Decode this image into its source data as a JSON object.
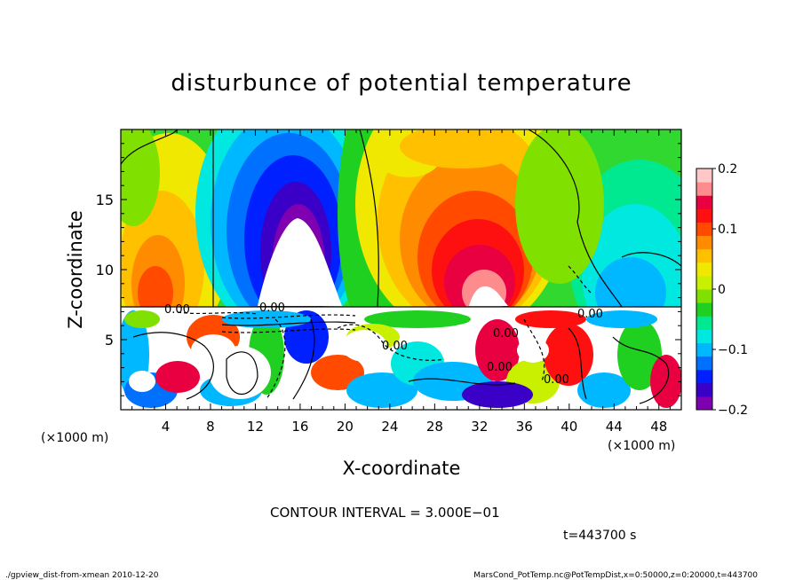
{
  "chart_data": {
    "type": "heatmap",
    "title": "disturbunce of potential temperature",
    "xlabel": "X-coordinate",
    "ylabel": "Z-coordinate",
    "x_unit_left": "(×1000 m)",
    "x_unit_right": "(×1000 m)",
    "xlim": [
      0,
      50
    ],
    "ylim": [
      0,
      20
    ],
    "x_ticks": [
      4,
      8,
      12,
      16,
      20,
      24,
      28,
      32,
      36,
      40,
      44,
      48
    ],
    "y_ticks": [
      5,
      10,
      15
    ],
    "colorbar": {
      "range": [
        -0.2,
        0.2
      ],
      "ticks": [
        0.2,
        0.1,
        0,
        -0.1,
        -0.2
      ],
      "tick_labels": [
        "0.2",
        "0.1",
        "0",
        "−0.1",
        "−0.2"
      ],
      "colors": [
        "#7f00b0",
        "#3a00c8",
        "#0020ff",
        "#0070ff",
        "#00b8ff",
        "#00e8e0",
        "#00e890",
        "#20d020",
        "#80e000",
        "#c8f000",
        "#f0e800",
        "#ffc000",
        "#ff8c00",
        "#ff4a00",
        "#ff1010",
        "#e80040",
        "#ff8c8c",
        "#ffc8c8"
      ]
    },
    "contour_labels": [
      "0.00",
      "0.00",
      "0.00",
      "0.00",
      "0.00",
      "0.00",
      "0.00"
    ],
    "contour_interval_text": "CONTOUR INTERVAL = 3.000E−01",
    "time_text": "t=443700 s"
  },
  "footer": {
    "left": "./gpview_dist-from-xmean  2010-12-20",
    "right": "MarsCond_PotTemp.nc@PotTempDist,x=0:50000,z=0:20000,t=443700"
  }
}
